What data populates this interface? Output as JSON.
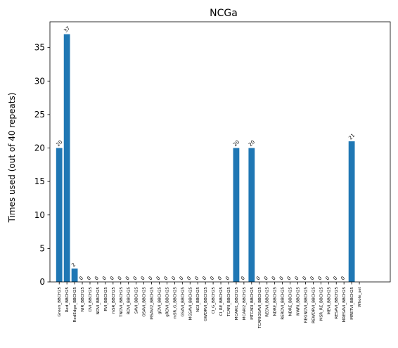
{
  "chart_data": {
    "type": "bar",
    "title": "NCGa",
    "xlabel": "",
    "ylabel": "Times used (out of 40 repeats)",
    "ylim": [
      0,
      38.85
    ],
    "yticks": [
      0,
      5,
      10,
      15,
      20,
      25,
      30,
      35
    ],
    "grid": false,
    "bar_color": "#1f77b4",
    "categories": [
      "Green_BBCH25",
      "Red_BBCH25",
      "RedEdge_BBCH25",
      "NIR_BBCH25",
      "DVI_BBCH25",
      "NDVI_BBCH25",
      "RVI_BBCH25",
      "mSR_BBCH25",
      "TNDVI_BBCH25",
      "RDVI_BBCH25",
      "SAVI_BBCH25",
      "OSAVI_BBCH25",
      "MSAVI2_BBCH25",
      "gDVI_BBCH25",
      "gRDVI_BBCH25",
      "mSR_G_BBCH25",
      "GSAVI_BBCH25",
      "MGSAVI_BBCH25",
      "NGI_BBCH25",
      "GWDRVI_BBCH25",
      "CI_G_BBCH25",
      "CI_RE_BBCH25",
      "TCARI_BBCH25",
      "MCARI1_BBCH25",
      "MCARI2_BBCH25",
      "MTCARI_BBCH25",
      "TCARIOSAVI_BBCH25",
      "REDVI_BBCH25",
      "NDRE_BBCH25",
      "RERDVI_BBCH25",
      "NDRE_BBCH25",
      "NWRI_BBCH25",
      "REGNDVI_BBCH25",
      "REWDRVI_BBCH25",
      "MSR_RE_BBCH25",
      "MEVI_BBCH25",
      "RESAVI_BBCH25",
      "MRESAVI_BBCH25",
      "MRETVI_BBCH25",
      "Whole_set"
    ],
    "values": [
      20,
      37,
      2,
      0,
      0,
      0,
      0,
      0,
      0,
      0,
      0,
      0,
      0,
      0,
      0,
      0,
      0,
      0,
      0,
      0,
      0,
      0,
      0,
      20,
      0,
      20,
      0,
      0,
      0,
      0,
      0,
      0,
      0,
      0,
      0,
      0,
      0,
      0,
      21,
      0
    ],
    "data_labels": [
      "20",
      "37",
      "2",
      "0",
      "0",
      "0",
      "0",
      "0",
      "0",
      "0",
      "0",
      "0",
      "0",
      "0",
      "0",
      "0",
      "0",
      "0",
      "0",
      "0",
      "0",
      "0",
      "0",
      "20",
      "0",
      "20",
      "0",
      "0",
      "0",
      "0",
      "0",
      "0",
      "0",
      "0",
      "0",
      "0",
      "0",
      "0",
      "21",
      ""
    ]
  }
}
